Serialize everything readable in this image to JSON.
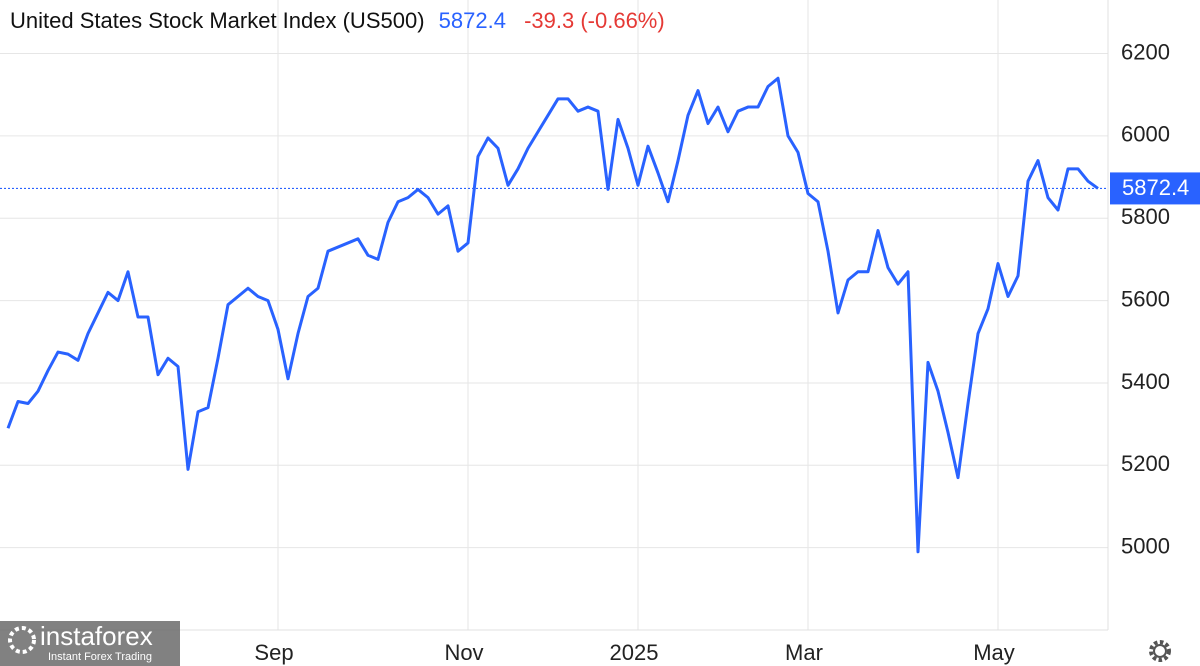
{
  "chart_data": {
    "type": "line",
    "title": "United States Stock Market Index (US500)",
    "change_label": "-39.3 (-0.66%)",
    "watermark": {
      "brand": "instaforex",
      "tagline": "Instant Forex Trading"
    },
    "categories": [
      null,
      null,
      null,
      null,
      null,
      null,
      null,
      null,
      null,
      null,
      null,
      null,
      null,
      null,
      null,
      null,
      null,
      null,
      null,
      null,
      null,
      null,
      null,
      null,
      null,
      null,
      null,
      "Sep",
      null,
      null,
      null,
      null,
      null,
      null,
      null,
      null,
      null,
      null,
      null,
      null,
      null,
      null,
      null,
      null,
      null,
      null,
      "Nov",
      null,
      null,
      null,
      null,
      null,
      null,
      null,
      null,
      null,
      null,
      null,
      null,
      null,
      null,
      null,
      null,
      "2025",
      null,
      null,
      null,
      null,
      null,
      null,
      null,
      null,
      null,
      null,
      null,
      null,
      null,
      null,
      null,
      null,
      "Mar",
      null,
      null,
      null,
      null,
      null,
      null,
      null,
      null,
      null,
      null,
      null,
      null,
      null,
      null,
      null,
      null,
      null,
      null,
      "May",
      null,
      null,
      null,
      null,
      null,
      null,
      null,
      null,
      null,
      null
    ],
    "series": [
      {
        "name": "US500",
        "color": "#2962ff",
        "values": [
          5290,
          5355,
          5350,
          5380,
          5430,
          5475,
          5470,
          5455,
          5520,
          5570,
          5620,
          5600,
          5670,
          5560,
          5560,
          5420,
          5460,
          5440,
          5190,
          5330,
          5340,
          5460,
          5590,
          5610,
          5630,
          5610,
          5600,
          5530,
          5410,
          5520,
          5610,
          5630,
          5720,
          5730,
          5740,
          5750,
          5710,
          5700,
          5790,
          5840,
          5850,
          5870,
          5850,
          5810,
          5830,
          5720,
          5740,
          5950,
          5995,
          5970,
          5880,
          5920,
          5970,
          6010,
          6050,
          6090,
          6090,
          6060,
          6070,
          6060,
          5870,
          6040,
          5970,
          5880,
          5975,
          5910,
          5840,
          5940,
          6050,
          6110,
          6030,
          6070,
          6010,
          6060,
          6070,
          6070,
          6120,
          6140,
          6000,
          5960,
          5860,
          5840,
          5720,
          5570,
          5650,
          5670,
          5670,
          5770,
          5680,
          5640,
          5670,
          4990,
          5450,
          5380,
          5280,
          5170,
          5350,
          5520,
          5580,
          5690,
          5610,
          5660,
          5890,
          5940,
          5850,
          5820,
          5920,
          5920,
          5890,
          5872.4
        ]
      }
    ],
    "ylim": [
      4800,
      6330
    ],
    "yticks": [
      5000,
      5200,
      5400,
      5600,
      5800,
      6000,
      6200
    ],
    "grid": true,
    "change_color": "#e53935"
  }
}
